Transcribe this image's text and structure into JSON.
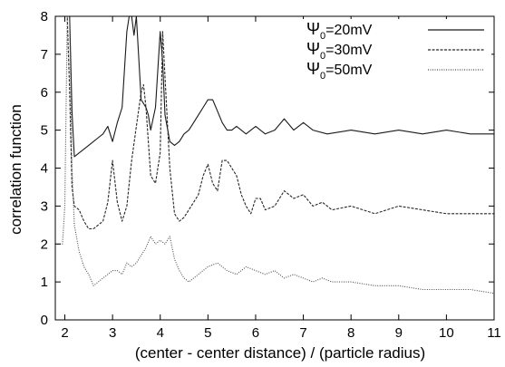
{
  "chart_data": {
    "type": "line",
    "title": "",
    "xlabel": "(center - center distance) / (particle radius)",
    "ylabel": "correlation function",
    "xlim": [
      1.8,
      11
    ],
    "ylim": [
      0,
      8
    ],
    "xticks": [
      2,
      3,
      4,
      5,
      6,
      7,
      8,
      9,
      10,
      11
    ],
    "yticks": [
      0,
      1,
      2,
      3,
      4,
      5,
      6,
      7,
      8
    ],
    "grid": false,
    "legend_position": "top-right",
    "series": [
      {
        "name": "Ψ0=20mV",
        "legend_symbol": "Ψ",
        "legend_sub": "0",
        "legend_rest": "=20mV",
        "color": "#1a1a1a",
        "style": "solid",
        "x": [
          2.0,
          2.05,
          2.1,
          2.15,
          2.2,
          2.3,
          2.4,
          2.5,
          2.6,
          2.7,
          2.8,
          2.9,
          3.0,
          3.1,
          3.2,
          3.3,
          3.35,
          3.4,
          3.45,
          3.5,
          3.6,
          3.7,
          3.75,
          3.8,
          3.9,
          4.0,
          4.05,
          4.1,
          4.2,
          4.3,
          4.4,
          4.5,
          4.6,
          4.7,
          4.8,
          4.9,
          5.0,
          5.1,
          5.2,
          5.3,
          5.4,
          5.5,
          5.6,
          5.8,
          6.0,
          6.2,
          6.4,
          6.6,
          6.8,
          7.0,
          7.2,
          7.5,
          8.0,
          8.5,
          9.0,
          9.5,
          10.0,
          10.5,
          11.0
        ],
        "y": [
          8.0,
          8.0,
          8.0,
          5.5,
          4.3,
          4.4,
          4.5,
          4.6,
          4.7,
          4.8,
          4.9,
          5.1,
          4.7,
          5.2,
          5.6,
          7.6,
          8.0,
          8.0,
          7.5,
          8.0,
          5.8,
          5.6,
          5.4,
          5.0,
          5.6,
          7.6,
          6.8,
          5.4,
          4.7,
          4.6,
          4.7,
          4.9,
          5.0,
          5.2,
          5.4,
          5.6,
          5.8,
          5.8,
          5.5,
          5.2,
          5.0,
          5.0,
          5.1,
          4.9,
          5.1,
          4.9,
          5.0,
          5.3,
          5.0,
          5.2,
          5.0,
          4.9,
          5.0,
          4.9,
          5.0,
          4.9,
          5.0,
          4.9,
          4.9
        ]
      },
      {
        "name": "Ψ0=30mV",
        "legend_symbol": "Ψ",
        "legend_sub": "0",
        "legend_rest": "=30mV",
        "color": "#262626",
        "style": "dashed",
        "x": [
          2.0,
          2.05,
          2.1,
          2.15,
          2.2,
          2.3,
          2.4,
          2.5,
          2.6,
          2.7,
          2.8,
          2.9,
          3.0,
          3.1,
          3.2,
          3.3,
          3.4,
          3.5,
          3.6,
          3.65,
          3.7,
          3.8,
          3.9,
          4.0,
          4.05,
          4.1,
          4.2,
          4.3,
          4.4,
          4.5,
          4.6,
          4.7,
          4.8,
          4.9,
          5.0,
          5.1,
          5.2,
          5.3,
          5.4,
          5.5,
          5.6,
          5.7,
          5.8,
          5.9,
          6.0,
          6.1,
          6.2,
          6.4,
          6.6,
          6.8,
          7.0,
          7.2,
          7.4,
          7.6,
          8.0,
          8.5,
          9.0,
          9.5,
          10.0,
          10.5,
          11.0
        ],
        "y": [
          8.0,
          8.0,
          6.0,
          3.5,
          3.0,
          2.9,
          2.6,
          2.4,
          2.4,
          2.5,
          2.6,
          3.1,
          4.2,
          3.1,
          2.6,
          3.0,
          4.2,
          5.1,
          6.0,
          6.2,
          5.6,
          3.8,
          3.6,
          4.4,
          7.6,
          6.4,
          4.0,
          2.8,
          2.6,
          2.7,
          2.9,
          3.1,
          3.3,
          3.8,
          4.1,
          3.6,
          3.4,
          4.2,
          4.2,
          4.0,
          3.8,
          3.3,
          3.0,
          2.8,
          3.2,
          3.2,
          2.9,
          3.0,
          3.4,
          3.2,
          3.3,
          3.0,
          3.1,
          2.9,
          3.0,
          2.8,
          3.0,
          2.9,
          2.8,
          2.8,
          2.8
        ]
      },
      {
        "name": "Ψ0=50mV",
        "legend_symbol": "Ψ",
        "legend_sub": "0",
        "legend_rest": "=50mV",
        "color": "#4d4d4d",
        "style": "dotted",
        "x": [
          1.8,
          1.95,
          2.0,
          2.05,
          2.1,
          2.15,
          2.2,
          2.3,
          2.4,
          2.5,
          2.6,
          2.7,
          2.8,
          2.9,
          3.0,
          3.1,
          3.2,
          3.3,
          3.4,
          3.5,
          3.6,
          3.7,
          3.8,
          3.9,
          4.0,
          4.1,
          4.2,
          4.3,
          4.4,
          4.5,
          4.6,
          4.8,
          5.0,
          5.2,
          5.4,
          5.6,
          5.8,
          6.0,
          6.2,
          6.4,
          6.6,
          6.8,
          7.0,
          7.2,
          7.4,
          7.6,
          8.0,
          8.5,
          9.0,
          9.5,
          10.0,
          10.5,
          11.0
        ],
        "y": [
          2.0,
          2.0,
          3.0,
          8.0,
          8.0,
          4.0,
          2.5,
          1.8,
          1.4,
          1.2,
          0.9,
          1.0,
          1.1,
          1.2,
          1.3,
          1.3,
          1.2,
          1.5,
          1.4,
          1.5,
          1.7,
          1.9,
          2.2,
          2.0,
          2.1,
          2.0,
          2.2,
          1.6,
          1.3,
          1.1,
          1.0,
          1.2,
          1.4,
          1.5,
          1.3,
          1.2,
          1.4,
          1.3,
          1.2,
          1.3,
          1.1,
          1.2,
          1.1,
          1.0,
          1.1,
          1.0,
          1.0,
          0.9,
          0.9,
          0.8,
          0.8,
          0.8,
          0.7
        ]
      }
    ]
  }
}
